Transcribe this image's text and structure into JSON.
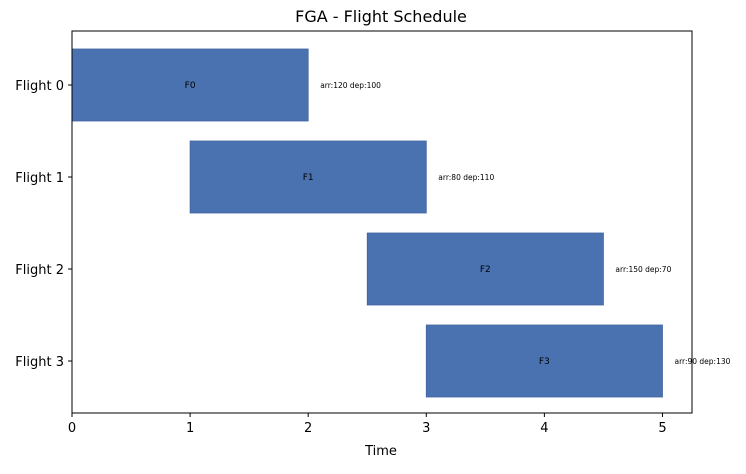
{
  "chart_data": {
    "type": "gantt",
    "title": "FGA - Flight Schedule",
    "xlabel": "Time",
    "ylabel": "",
    "xlim": [
      0,
      5.25
    ],
    "xticks": [
      "0",
      "1",
      "2",
      "3",
      "4",
      "5"
    ],
    "grid": false,
    "legend": "none",
    "bar_color": "#4a72b0",
    "flights": [
      {
        "row_label": "Flight 0",
        "bar_label": "F0",
        "start": 0,
        "end": 2,
        "annotation": "arr:120  dep:100"
      },
      {
        "row_label": "Flight 1",
        "bar_label": "F1",
        "start": 1,
        "end": 3,
        "annotation": "arr:80  dep:110"
      },
      {
        "row_label": "Flight 2",
        "bar_label": "F2",
        "start": 2.5,
        "end": 4.5,
        "annotation": "arr:150  dep:70"
      },
      {
        "row_label": "Flight 3",
        "bar_label": "F3",
        "start": 3,
        "end": 5,
        "annotation": "arr:90  dep:130"
      }
    ]
  }
}
